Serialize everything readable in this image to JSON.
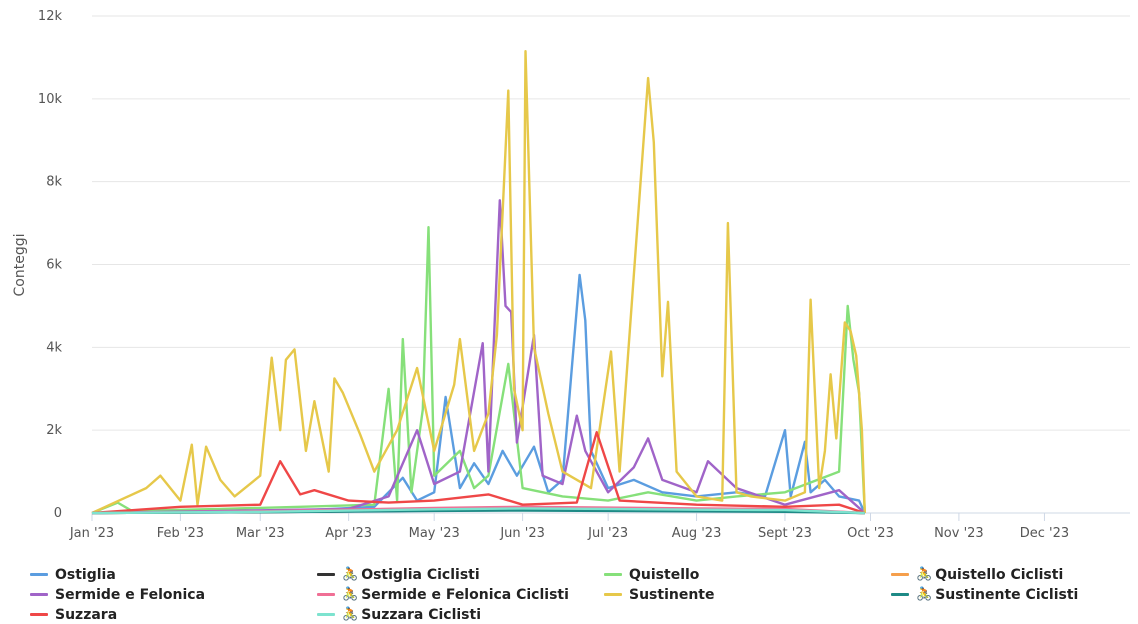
{
  "chart_data": {
    "type": "line",
    "title": "",
    "xlabel": "",
    "ylabel": "Conteggi",
    "ylim": [
      0,
      12000
    ],
    "xlim": [
      "2023-01-01",
      "2023-12-31"
    ],
    "y_ticks": [
      0,
      2000,
      4000,
      6000,
      8000,
      10000,
      12000
    ],
    "y_tick_labels": [
      "0",
      "2k",
      "4k",
      "6k",
      "8k",
      "10k",
      "12k"
    ],
    "x_ticks": [
      "2023-01-01",
      "2023-02-01",
      "2023-03-01",
      "2023-04-01",
      "2023-05-01",
      "2023-06-01",
      "2023-07-01",
      "2023-08-01",
      "2023-09-01",
      "2023-10-01",
      "2023-11-01",
      "2023-12-01"
    ],
    "x_tick_labels": [
      "Jan '23",
      "Feb '23",
      "Mar '23",
      "Apr '23",
      "May '23",
      "Jun '23",
      "Jul '23",
      "Aug '23",
      "Sept '23",
      "Oct '23",
      "Nov '23",
      "Dec '23"
    ],
    "grid": "horizontal",
    "legend_position": "bottom",
    "series": [
      {
        "name": "Ostiglia",
        "color": "#5b9de0",
        "bike": false,
        "points": [
          [
            "2023-01-01",
            0
          ],
          [
            "2023-03-15",
            60
          ],
          [
            "2023-04-10",
            150
          ],
          [
            "2023-04-20",
            850
          ],
          [
            "2023-04-25",
            300
          ],
          [
            "2023-05-01",
            500
          ],
          [
            "2023-05-05",
            2800
          ],
          [
            "2023-05-10",
            600
          ],
          [
            "2023-05-15",
            1200
          ],
          [
            "2023-05-20",
            700
          ],
          [
            "2023-05-25",
            1500
          ],
          [
            "2023-05-30",
            900
          ],
          [
            "2023-06-05",
            1600
          ],
          [
            "2023-06-10",
            500
          ],
          [
            "2023-06-15",
            800
          ],
          [
            "2023-06-21",
            5750
          ],
          [
            "2023-06-23",
            4650
          ],
          [
            "2023-06-25",
            1500
          ],
          [
            "2023-07-01",
            600
          ],
          [
            "2023-07-10",
            800
          ],
          [
            "2023-07-20",
            500
          ],
          [
            "2023-08-01",
            400
          ],
          [
            "2023-08-15",
            500
          ],
          [
            "2023-08-25",
            400
          ],
          [
            "2023-09-01",
            2000
          ],
          [
            "2023-09-03",
            400
          ],
          [
            "2023-09-08",
            1720
          ],
          [
            "2023-09-10",
            500
          ],
          [
            "2023-09-15",
            800
          ],
          [
            "2023-09-20",
            400
          ],
          [
            "2023-09-27",
            300
          ],
          [
            "2023-09-29",
            0
          ]
        ]
      },
      {
        "name": "Ostiglia Ciclisti",
        "color": "#333333",
        "bike": true,
        "points": [
          [
            "2023-01-01",
            0
          ],
          [
            "2023-03-01",
            20
          ],
          [
            "2023-05-01",
            60
          ],
          [
            "2023-06-01",
            80
          ],
          [
            "2023-07-01",
            70
          ],
          [
            "2023-08-01",
            60
          ],
          [
            "2023-09-01",
            50
          ],
          [
            "2023-09-29",
            0
          ]
        ]
      },
      {
        "name": "Quistello",
        "color": "#86e07a",
        "bike": false,
        "points": [
          [
            "2023-01-01",
            0
          ],
          [
            "2023-01-10",
            250
          ],
          [
            "2023-01-15",
            50
          ],
          [
            "2023-02-15",
            100
          ],
          [
            "2023-03-15",
            150
          ],
          [
            "2023-04-10",
            200
          ],
          [
            "2023-04-15",
            3000
          ],
          [
            "2023-04-18",
            300
          ],
          [
            "2023-04-20",
            4200
          ],
          [
            "2023-04-23",
            500
          ],
          [
            "2023-04-27",
            2500
          ],
          [
            "2023-04-29",
            6900
          ],
          [
            "2023-05-01",
            900
          ],
          [
            "2023-05-10",
            1500
          ],
          [
            "2023-05-15",
            600
          ],
          [
            "2023-05-20",
            900
          ],
          [
            "2023-05-27",
            3600
          ],
          [
            "2023-06-01",
            600
          ],
          [
            "2023-06-15",
            400
          ],
          [
            "2023-07-01",
            300
          ],
          [
            "2023-07-15",
            500
          ],
          [
            "2023-08-01",
            300
          ],
          [
            "2023-08-15",
            400
          ],
          [
            "2023-09-01",
            500
          ],
          [
            "2023-09-20",
            1000
          ],
          [
            "2023-09-23",
            5000
          ],
          [
            "2023-09-25",
            3700
          ],
          [
            "2023-09-27",
            2900
          ],
          [
            "2023-09-29",
            0
          ]
        ]
      },
      {
        "name": "Quistello Ciclisti",
        "color": "#f59f4c",
        "bike": true,
        "points": [
          [
            "2023-01-01",
            0
          ],
          [
            "2023-03-01",
            30
          ],
          [
            "2023-05-01",
            80
          ],
          [
            "2023-06-01",
            100
          ],
          [
            "2023-07-01",
            120
          ],
          [
            "2023-08-01",
            90
          ],
          [
            "2023-09-01",
            80
          ],
          [
            "2023-09-29",
            0
          ]
        ]
      },
      {
        "name": "Sermide e Felonica",
        "color": "#a064c8",
        "bike": false,
        "points": [
          [
            "2023-01-01",
            0
          ],
          [
            "2023-04-01",
            100
          ],
          [
            "2023-04-15",
            400
          ],
          [
            "2023-04-25",
            2000
          ],
          [
            "2023-05-01",
            700
          ],
          [
            "2023-05-10",
            1000
          ],
          [
            "2023-05-18",
            4100
          ],
          [
            "2023-05-20",
            1000
          ],
          [
            "2023-05-24",
            7550
          ],
          [
            "2023-05-26",
            5000
          ],
          [
            "2023-05-28",
            4850
          ],
          [
            "2023-05-30",
            1700
          ],
          [
            "2023-06-05",
            4300
          ],
          [
            "2023-06-08",
            900
          ],
          [
            "2023-06-15",
            700
          ],
          [
            "2023-06-20",
            2350
          ],
          [
            "2023-06-23",
            1500
          ],
          [
            "2023-07-01",
            500
          ],
          [
            "2023-07-10",
            1100
          ],
          [
            "2023-07-15",
            1800
          ],
          [
            "2023-07-20",
            800
          ],
          [
            "2023-08-01",
            500
          ],
          [
            "2023-08-05",
            1250
          ],
          [
            "2023-08-15",
            600
          ],
          [
            "2023-09-01",
            200
          ],
          [
            "2023-09-20",
            550
          ],
          [
            "2023-09-29",
            0
          ]
        ]
      },
      {
        "name": "Sermide e Felonica Ciclisti",
        "color": "#f06f95",
        "bike": true,
        "points": [
          [
            "2023-01-01",
            0
          ],
          [
            "2023-03-01",
            40
          ],
          [
            "2023-05-01",
            120
          ],
          [
            "2023-06-01",
            150
          ],
          [
            "2023-07-01",
            130
          ],
          [
            "2023-08-01",
            110
          ],
          [
            "2023-09-01",
            100
          ],
          [
            "2023-09-29",
            0
          ]
        ]
      },
      {
        "name": "Sustinente",
        "color": "#e6c84a",
        "bike": false,
        "points": [
          [
            "2023-01-01",
            0
          ],
          [
            "2023-01-20",
            600
          ],
          [
            "2023-01-25",
            900
          ],
          [
            "2023-02-01",
            300
          ],
          [
            "2023-02-05",
            1650
          ],
          [
            "2023-02-07",
            200
          ],
          [
            "2023-02-10",
            1600
          ],
          [
            "2023-02-15",
            800
          ],
          [
            "2023-02-20",
            400
          ],
          [
            "2023-03-01",
            900
          ],
          [
            "2023-03-05",
            3750
          ],
          [
            "2023-03-08",
            2000
          ],
          [
            "2023-03-10",
            3700
          ],
          [
            "2023-03-13",
            3950
          ],
          [
            "2023-03-17",
            1500
          ],
          [
            "2023-03-20",
            2700
          ],
          [
            "2023-03-25",
            1000
          ],
          [
            "2023-03-27",
            3250
          ],
          [
            "2023-03-30",
            2900
          ],
          [
            "2023-04-05",
            1900
          ],
          [
            "2023-04-10",
            1000
          ],
          [
            "2023-04-18",
            2000
          ],
          [
            "2023-04-25",
            3500
          ],
          [
            "2023-05-01",
            1500
          ],
          [
            "2023-05-08",
            3100
          ],
          [
            "2023-05-10",
            4200
          ],
          [
            "2023-05-15",
            1500
          ],
          [
            "2023-05-20",
            2400
          ],
          [
            "2023-05-23",
            4300
          ],
          [
            "2023-05-27",
            10200
          ],
          [
            "2023-05-29",
            3000
          ],
          [
            "2023-06-01",
            2000
          ],
          [
            "2023-06-02",
            11150
          ],
          [
            "2023-06-05",
            4000
          ],
          [
            "2023-06-10",
            2400
          ],
          [
            "2023-06-15",
            1000
          ],
          [
            "2023-06-25",
            600
          ],
          [
            "2023-07-02",
            3900
          ],
          [
            "2023-07-05",
            1000
          ],
          [
            "2023-07-15",
            10500
          ],
          [
            "2023-07-17",
            8950
          ],
          [
            "2023-07-20",
            3300
          ],
          [
            "2023-07-22",
            5100
          ],
          [
            "2023-07-25",
            1000
          ],
          [
            "2023-08-01",
            400
          ],
          [
            "2023-08-10",
            300
          ],
          [
            "2023-08-12",
            7000
          ],
          [
            "2023-08-15",
            500
          ],
          [
            "2023-08-20",
            400
          ],
          [
            "2023-09-01",
            300
          ],
          [
            "2023-09-08",
            500
          ],
          [
            "2023-09-10",
            5150
          ],
          [
            "2023-09-13",
            600
          ],
          [
            "2023-09-15",
            1500
          ],
          [
            "2023-09-17",
            3350
          ],
          [
            "2023-09-19",
            1800
          ],
          [
            "2023-09-22",
            4600
          ],
          [
            "2023-09-24",
            4400
          ],
          [
            "2023-09-26",
            3800
          ],
          [
            "2023-09-28",
            2000
          ],
          [
            "2023-09-29",
            0
          ]
        ]
      },
      {
        "name": "Sustinente Ciclisti",
        "color": "#1e8a86",
        "bike": true,
        "points": [
          [
            "2023-01-01",
            0
          ],
          [
            "2023-03-01",
            20
          ],
          [
            "2023-05-01",
            50
          ],
          [
            "2023-06-01",
            60
          ],
          [
            "2023-07-01",
            50
          ],
          [
            "2023-08-01",
            40
          ],
          [
            "2023-09-01",
            30
          ],
          [
            "2023-09-29",
            0
          ]
        ]
      },
      {
        "name": "Suzzara",
        "color": "#ef4747",
        "bike": false,
        "points": [
          [
            "2023-01-01",
            0
          ],
          [
            "2023-02-01",
            150
          ],
          [
            "2023-03-01",
            200
          ],
          [
            "2023-03-08",
            1250
          ],
          [
            "2023-03-15",
            450
          ],
          [
            "2023-03-20",
            550
          ],
          [
            "2023-04-01",
            300
          ],
          [
            "2023-04-15",
            250
          ],
          [
            "2023-05-01",
            300
          ],
          [
            "2023-05-20",
            450
          ],
          [
            "2023-06-01",
            200
          ],
          [
            "2023-06-20",
            250
          ],
          [
            "2023-06-27",
            1950
          ],
          [
            "2023-07-05",
            300
          ],
          [
            "2023-08-01",
            200
          ],
          [
            "2023-09-01",
            150
          ],
          [
            "2023-09-20",
            200
          ],
          [
            "2023-09-29",
            0
          ]
        ]
      },
      {
        "name": "Suzzara Ciclisti",
        "color": "#7de3cf",
        "bike": true,
        "points": [
          [
            "2023-01-01",
            0
          ],
          [
            "2023-03-01",
            30
          ],
          [
            "2023-05-01",
            90
          ],
          [
            "2023-06-01",
            110
          ],
          [
            "2023-07-01",
            100
          ],
          [
            "2023-08-01",
            80
          ],
          [
            "2023-09-01",
            70
          ],
          [
            "2023-09-29",
            0
          ]
        ]
      }
    ]
  }
}
